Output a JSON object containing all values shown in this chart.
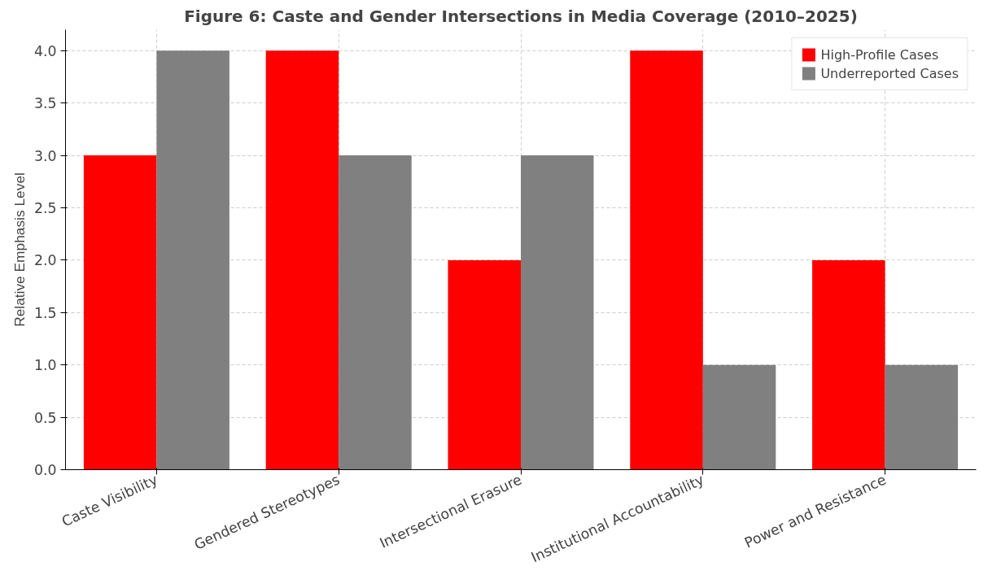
{
  "chart_data": {
    "type": "bar",
    "title": "Figure 6: Caste and Gender Intersections in Media Coverage (2010–2025)",
    "ylabel": "Relative Emphasis Level",
    "categories": [
      "Caste Visibility",
      "Gendered Stereotypes",
      "Intersectional Erasure",
      "Institutional Accountability",
      "Power and Resistance"
    ],
    "series": [
      {
        "name": "High-Profile Cases",
        "color": "#ff0000",
        "values": [
          3,
          4,
          2,
          4,
          2
        ]
      },
      {
        "name": "Underreported Cases",
        "color": "#808080",
        "values": [
          4,
          3,
          3,
          1,
          1
        ]
      }
    ],
    "ylim": [
      0,
      4.2
    ],
    "yticks": [
      {
        "value": 0,
        "label": "0.0"
      },
      {
        "value": 0.5,
        "label": "0.5"
      },
      {
        "value": 1,
        "label": "1.0"
      },
      {
        "value": 1.5,
        "label": "1.5"
      },
      {
        "value": 2,
        "label": "2.0"
      },
      {
        "value": 2.5,
        "label": "2.5"
      },
      {
        "value": 3,
        "label": "3.0"
      },
      {
        "value": 3.5,
        "label": "3.5"
      },
      {
        "value": 4,
        "label": "4.0"
      }
    ],
    "grid": true,
    "legend": "top right"
  }
}
